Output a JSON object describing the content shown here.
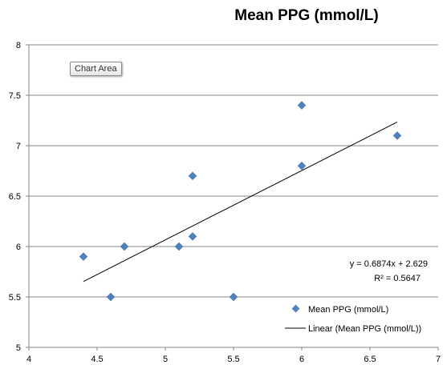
{
  "tooltip": "Chart Area",
  "colors": {
    "marker": "#4F81BD",
    "trendline": "#000000",
    "axis": "#868686"
  },
  "chart_data": {
    "type": "scatter",
    "title": "Mean PPG (mmol/L)",
    "xlabel": "",
    "ylabel": "",
    "xlim": [
      4,
      7
    ],
    "ylim": [
      5,
      8
    ],
    "x_ticks": [
      "4",
      "4.5",
      "5",
      "5.5",
      "6",
      "6.5",
      "7"
    ],
    "y_ticks": [
      "5",
      "5.5",
      "6",
      "6.5",
      "7",
      "7.5",
      "8"
    ],
    "grid": "horizontal",
    "series": [
      {
        "name": "Mean PPG (mmol/L)",
        "marker": "diamond",
        "points": [
          {
            "x": 4.4,
            "y": 5.9
          },
          {
            "x": 4.6,
            "y": 5.5
          },
          {
            "x": 4.7,
            "y": 6.0
          },
          {
            "x": 5.1,
            "y": 6.0
          },
          {
            "x": 5.2,
            "y": 6.7
          },
          {
            "x": 5.2,
            "y": 6.1
          },
          {
            "x": 5.5,
            "y": 5.5
          },
          {
            "x": 6.0,
            "y": 7.4
          },
          {
            "x": 6.0,
            "y": 6.8
          },
          {
            "x": 6.7,
            "y": 7.1
          }
        ]
      }
    ],
    "trendline": {
      "name": "Linear (Mean PPG (mmol/L))",
      "slope": 0.6874,
      "intercept": 2.629,
      "x_range": [
        4.4,
        6.7
      ],
      "equation": "y = 0.6874x + 2.629",
      "r2": "R² = 0.5647"
    },
    "legend": "right"
  }
}
